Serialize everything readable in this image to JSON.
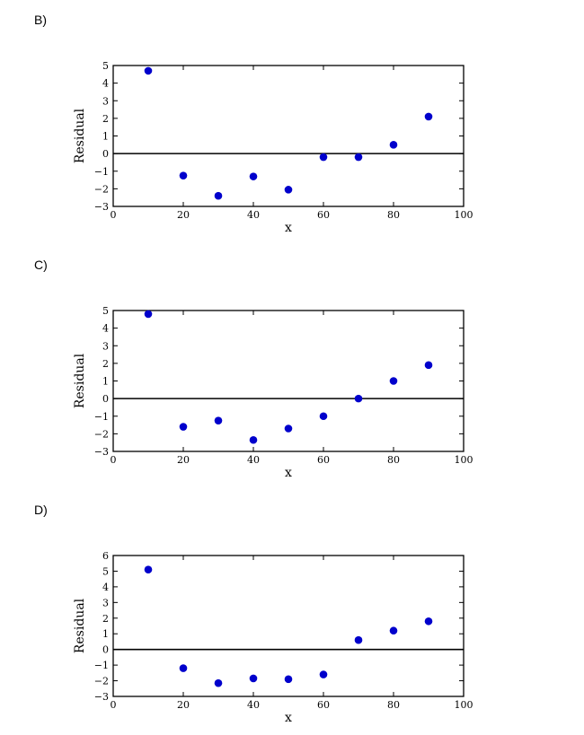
{
  "panels": [
    {
      "label": "B)"
    },
    {
      "label": "C)"
    },
    {
      "label": "D)"
    }
  ],
  "chart_data": [
    {
      "type": "scatter",
      "xlabel": "x",
      "ylabel": "Residual",
      "xlim": [
        0,
        100
      ],
      "ylim": [
        -3,
        5
      ],
      "xticks": [
        0,
        20,
        40,
        60,
        80,
        100
      ],
      "yticks": [
        -3,
        -2,
        -1,
        0,
        1,
        2,
        3,
        4,
        5
      ],
      "zero_line": true,
      "grid": false,
      "marker_color": "#0000cc",
      "x": [
        10,
        20,
        30,
        40,
        50,
        60,
        70,
        80,
        90
      ],
      "y": [
        4.7,
        -1.25,
        -2.4,
        -1.3,
        -2.05,
        -0.2,
        -0.2,
        0.5,
        2.1
      ]
    },
    {
      "type": "scatter",
      "xlabel": "x",
      "ylabel": "Residual",
      "xlim": [
        0,
        100
      ],
      "ylim": [
        -3,
        5
      ],
      "xticks": [
        0,
        20,
        40,
        60,
        80,
        100
      ],
      "yticks": [
        -3,
        -2,
        -1,
        0,
        1,
        2,
        3,
        4,
        5
      ],
      "zero_line": true,
      "grid": false,
      "marker_color": "#0000cc",
      "x": [
        10,
        20,
        30,
        40,
        50,
        60,
        70,
        80,
        90
      ],
      "y": [
        4.8,
        -1.6,
        -1.25,
        -2.35,
        -1.7,
        -1.0,
        0.0,
        1.0,
        1.9
      ]
    },
    {
      "type": "scatter",
      "xlabel": "x",
      "ylabel": "Residual",
      "xlim": [
        0,
        100
      ],
      "ylim": [
        -3,
        6
      ],
      "xticks": [
        0,
        20,
        40,
        60,
        80,
        100
      ],
      "yticks": [
        -3,
        -2,
        -1,
        0,
        1,
        2,
        3,
        4,
        5,
        6
      ],
      "zero_line": true,
      "grid": false,
      "marker_color": "#0000cc",
      "x": [
        10,
        20,
        30,
        40,
        50,
        60,
        70,
        80,
        90
      ],
      "y": [
        5.1,
        -1.2,
        -2.15,
        -1.85,
        -1.9,
        -1.6,
        0.6,
        1.2,
        1.8
      ]
    }
  ]
}
